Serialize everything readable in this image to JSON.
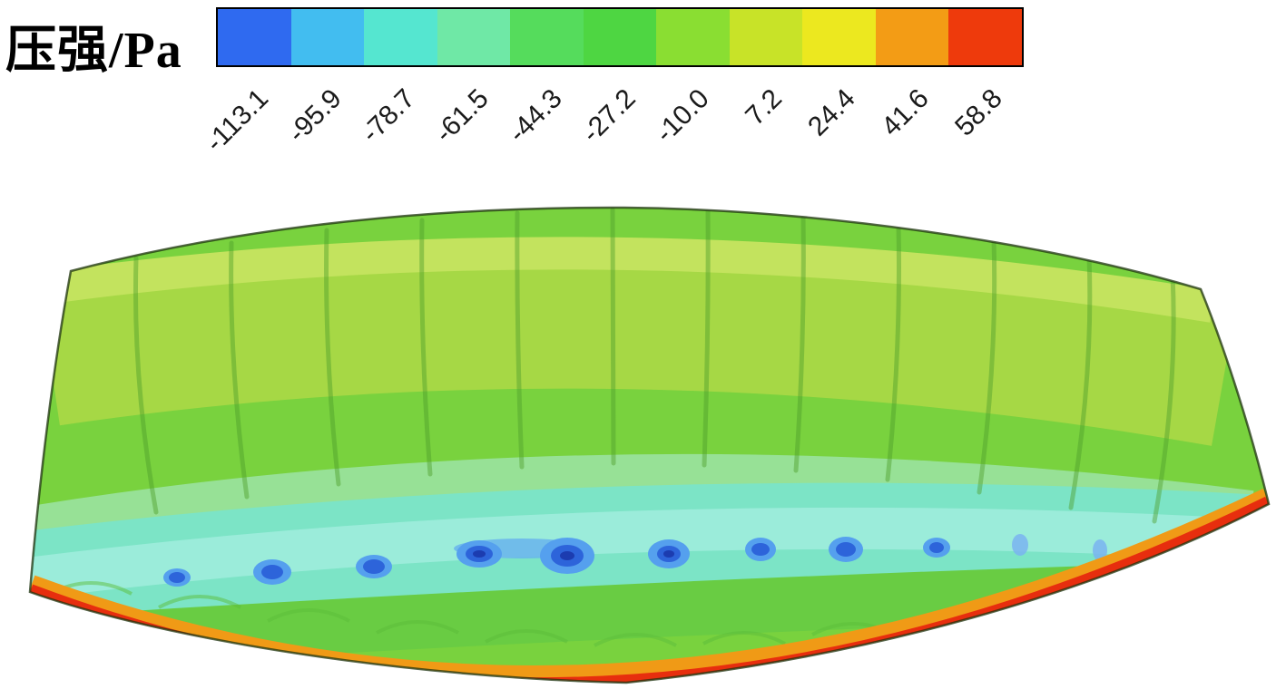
{
  "colorbar": {
    "label": "压强/Pa",
    "unit": "Pa",
    "ticks": [
      "-113.1",
      "-95.9",
      "-78.7",
      "-61.5",
      "-44.3",
      "-27.2",
      "-10.0",
      "7.2",
      "24.4",
      "41.6",
      "58.8"
    ],
    "segment_colors": [
      "#2f6af0",
      "#42bdf0",
      "#55e6d0",
      "#6fe8a6",
      "#55dc5c",
      "#4ed642",
      "#8ade32",
      "#c8e328",
      "#ece81f",
      "#f39c15",
      "#ee3a0c"
    ],
    "border_color": "#000000",
    "orientation": "horizontal"
  },
  "chart_data": {
    "type": "heatmap",
    "title": "压强/Pa",
    "subject": "surface pressure contour on a ram-air parafoil canopy (upper surface, 3D view)",
    "colorbar_label": "压强/Pa",
    "unit": "Pa",
    "tick_values": [
      -113.1,
      -95.9,
      -78.7,
      -61.5,
      -44.3,
      -27.2,
      -10.0,
      7.2,
      24.4,
      41.6,
      58.8
    ],
    "tick_step": 17.2,
    "value_range": [
      -113.1,
      58.8
    ],
    "colors": [
      "#2f6af0",
      "#42bdf0",
      "#55e6d0",
      "#6fe8a6",
      "#55dc5c",
      "#4ed642",
      "#8ade32",
      "#c8e328",
      "#ece81f",
      "#f39c15",
      "#ee3a0c"
    ],
    "legend_position": "top",
    "regions_read_from_colors": {
      "upper_forward_surface": "yellow-green band, approx -10.0 to 7.2 Pa",
      "mid_surface": "green, approx -27.2 to -10.0 Pa",
      "suction_band": "cyan band across lower-middle span, approx -61.5 to -44.3 Pa",
      "suction_peak_spots": "row of blue spots (one per cell), approx -113.1 to -78.7 Pa",
      "lower_trailing_rim": "orange to red edge, approx 24.4 to 58.8 Pa"
    },
    "num_suction_spots": 12,
    "num_cell_ribs": 12
  }
}
